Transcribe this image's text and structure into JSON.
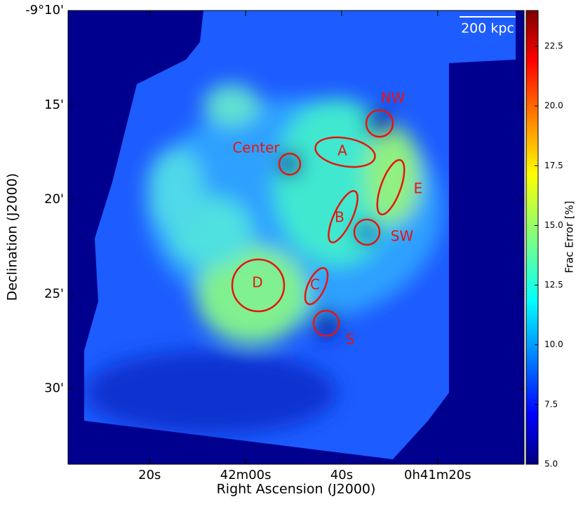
{
  "chart_data": {
    "type": "image",
    "xlabel": "Right Ascension (J2000)",
    "ylabel": "Declination (J2000)",
    "xlim": [
      2557,
      2462
    ],
    "xticks": [
      {
        "value": 2540,
        "label": "20s"
      },
      {
        "value": 2520,
        "label": "42m00s"
      },
      {
        "value": 2500,
        "label": "40s"
      },
      {
        "value": 2480,
        "label": "0h41m20s"
      }
    ],
    "ylim": [
      -574,
      -550
    ],
    "yticks": [
      {
        "value": -550,
        "label": "-9°10'"
      },
      {
        "value": -555,
        "label": "15'"
      },
      {
        "value": -560,
        "label": "20'"
      },
      {
        "value": -565,
        "label": "25'"
      },
      {
        "value": -570,
        "label": "30'"
      }
    ],
    "colorbar_label": "Frac Error [%]",
    "clim": [
      5,
      24
    ],
    "cticks": [
      {
        "value": 5,
        "label": "5.0"
      },
      7.5,
      {
        "value": 10,
        "label": "10.0"
      },
      12.5,
      {
        "value": 15,
        "label": "15.0"
      },
      17.5,
      {
        "value": 20,
        "label": "20.0"
      },
      22.5
    ],
    "scale_bar": "200 kpc",
    "regions": [
      "NW",
      "A",
      "Center",
      "E",
      "B",
      "SW",
      "D",
      "C",
      "S"
    ]
  }
}
